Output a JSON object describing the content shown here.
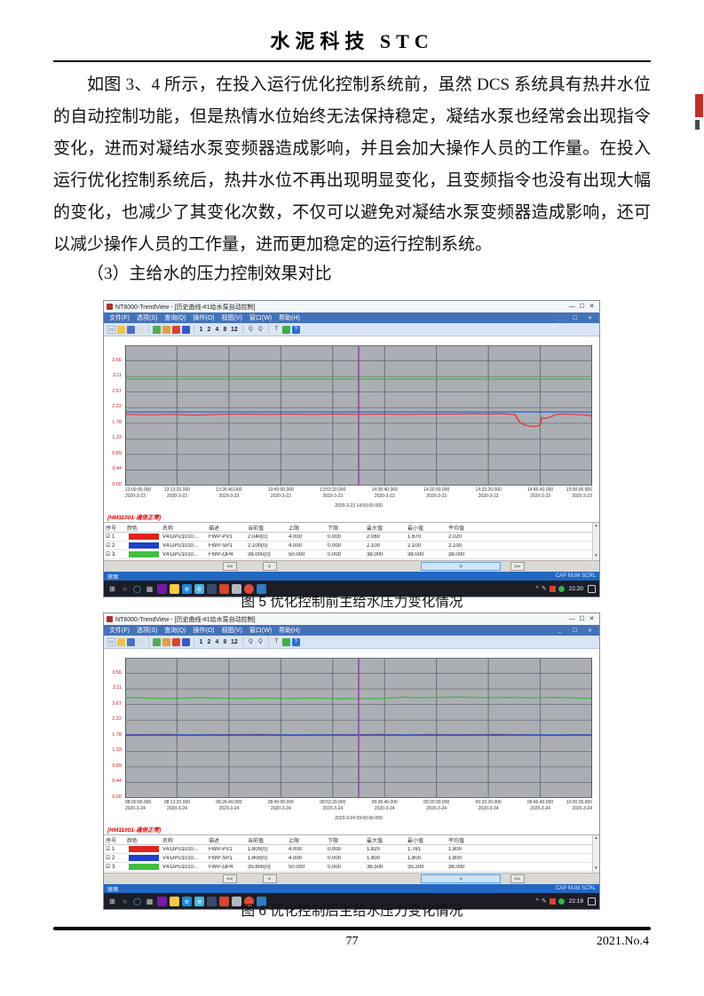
{
  "page": {
    "journal_title": "水泥科技 STC",
    "paragraph": "如图 3、4 所示，在投入运行优化控制系统前，虽然 DCS 系统具有热井水位的自动控制功能，但是热情水位始终无法保持稳定，凝结水泵也经常会出现指令变化，进而对凝结水泵变频器造成影响，并且会加大操作人员的工作量。在投入运行优化控制系统后，热井水位不再出现明显变化，且变频指令也没有出现大幅的变化，也减少了其变化次数，不仅可以避免对凝结水泵变频器造成影响，还可以减少操作人员的工作量，进而更加稳定的运行控制系统。",
    "subheading": "（3）主给水的压力控制效果对比",
    "fig5_caption": "图 5 优化控制前主给水压力变化情况",
    "fig6_caption": "图 6 优化控制后主给水压力变化情况",
    "page_number": "77",
    "issue_label": "2021.No.4"
  },
  "trendview": {
    "window_title": "NT6000-TrendView - [历史曲线-#1给水泵自动控制]",
    "window_controls": [
      "—",
      "☐",
      "✕"
    ],
    "mdi_controls": [
      "_",
      "☐",
      "✕"
    ],
    "menus": [
      "文件(F)",
      "选项(S)",
      "查询(Q)",
      "操作(O)",
      "视图(V)",
      "窗口(W)",
      "帮助(H)"
    ],
    "toolbar_items": [
      {
        "name": "new-icon",
        "glyph": "▤",
        "bg": "#fbfbfb",
        "fg": "#6a86ae",
        "border": true
      },
      {
        "name": "open-icon",
        "glyph": "",
        "bg": "#f2c24f"
      },
      {
        "name": "save-icon",
        "glyph": "",
        "bg": "#4a72c0"
      },
      {
        "name": "print-icon",
        "glyph": "",
        "bg": "#d7dde4"
      },
      {
        "name": "sep"
      },
      {
        "name": "export-icon",
        "glyph": "",
        "bg": "#58a858"
      },
      {
        "name": "copy-icon",
        "glyph": "",
        "bg": "#e0a23e"
      },
      {
        "name": "alarm-icon",
        "glyph": "",
        "bg": "#d84430"
      },
      {
        "name": "realtime-icon",
        "glyph": "",
        "bg": "#3a55c0"
      },
      {
        "name": "sep"
      },
      {
        "name": "interval-1-button",
        "text": "1"
      },
      {
        "name": "interval-2-button",
        "text": "2"
      },
      {
        "name": "interval-4-button",
        "text": "4"
      },
      {
        "name": "interval-8-button",
        "text": "8"
      },
      {
        "name": "interval-12-button",
        "text": "12"
      },
      {
        "name": "sep"
      },
      {
        "name": "zoom-in-icon",
        "glyph": "Q",
        "bg": "#dce6f4",
        "fg": "#333"
      },
      {
        "name": "zoom-out-icon",
        "glyph": "Q",
        "bg": "#dce6f4",
        "fg": "#333"
      },
      {
        "name": "sep"
      },
      {
        "name": "cursor-tool-icon",
        "glyph": "T",
        "bg": "#dce6f4",
        "fg": "#222"
      },
      {
        "name": "legend-icon",
        "glyph": "",
        "bg": "#3fae49"
      },
      {
        "name": "help-icon",
        "glyph": "?",
        "bg": "#2f6fd0",
        "fg": "#fff"
      }
    ],
    "y_axis_labels": [
      "3.56",
      "3.11",
      "2.67",
      "2.22",
      "1.78",
      "1.33",
      "0.89",
      "0.44",
      "0.00"
    ],
    "alarm_text": "[HM11001-通信正常]",
    "table_headers": [
      "序号",
      "颜色",
      "名称",
      "描述",
      "当前值",
      "上限",
      "下限",
      "最大值",
      "最小值",
      "平均值"
    ],
    "scroll_buttons": [
      "<<",
      "<",
      ">",
      ">>"
    ],
    "status_ready": "就绪",
    "status_locks": "CAP NUM SCRL",
    "taskbar_icons": [
      {
        "name": "start-button",
        "glyph": "⊞",
        "fg": "#dfe8f2"
      },
      {
        "name": "search-icon",
        "glyph": "○",
        "fg": "#c9ced4"
      },
      {
        "name": "cortana-icon",
        "glyph": "◯",
        "fg": "#56b6e8"
      },
      {
        "name": "task-view-icon",
        "glyph": "▦",
        "fg": "#c9ced4"
      },
      {
        "name": "onenote-icon",
        "bg": "#7719aa"
      },
      {
        "name": "explorer-icon",
        "bg": "#f7c749"
      },
      {
        "name": "edge-icon",
        "glyph": "e",
        "bg": "#1e88d2",
        "fg": "#fff"
      },
      {
        "name": "ie-icon",
        "glyph": "e",
        "bg": "#49b3e8",
        "fg": "#fff"
      },
      {
        "name": "app-icon-navy",
        "bg": "#3a4a6b"
      },
      {
        "name": "defender-icon",
        "bg": "#d6452f"
      },
      {
        "name": "media-icon",
        "bg": "#b4b9c0"
      },
      {
        "name": "chrome-icon",
        "bg": "#dd4b39",
        "round": true
      },
      {
        "name": "vscode-icon",
        "bg": "#2f7cc3"
      }
    ],
    "tray": {
      "chevron": "^",
      "pen_glyph": "✎",
      "notification_glyph": "▭"
    }
  },
  "chart_data": [
    {
      "type": "line",
      "title": "优化控制前主给水压力变化情况",
      "ylim": [
        0,
        4
      ],
      "grid": true,
      "tick_date": "2020-3-23",
      "x_times": [
        "13:00:00.000",
        "13:13:20.000",
        "13:26:40.000",
        "13:40:00.000",
        "13:53:20.000",
        "14:06:40.000",
        "14:20:00.000",
        "14:33:20.000",
        "14:46:40.000",
        "15:00:00.000"
      ],
      "cursor_label": "2020-3-23 14:00:00.000",
      "series": [
        {
          "name": "FWP-OP4",
          "color": "#3db53d",
          "width": 3,
          "points": [
            [
              0,
              3.04
            ],
            [
              1,
              3.04
            ]
          ]
        },
        {
          "name": "FWP-SP1",
          "color": "#2457c5",
          "width": 3,
          "points": [
            [
              0,
              2.1
            ],
            [
              1,
              2.1
            ]
          ]
        },
        {
          "name": "FWP-PV1",
          "color": "#e03438",
          "width": 3,
          "points": [
            [
              0,
              2.03
            ],
            [
              0.05,
              2.02
            ],
            [
              0.1,
              2.03
            ],
            [
              0.15,
              2.01
            ],
            [
              0.2,
              2.03
            ],
            [
              0.25,
              2.04
            ],
            [
              0.3,
              2.03
            ],
            [
              0.35,
              2.04
            ],
            [
              0.4,
              2.03
            ],
            [
              0.45,
              2.04
            ],
            [
              0.5,
              2.03
            ],
            [
              0.55,
              2.04
            ],
            [
              0.6,
              2.03
            ],
            [
              0.65,
              2.04
            ],
            [
              0.7,
              2.04
            ],
            [
              0.75,
              2.05
            ],
            [
              0.78,
              2.04
            ],
            [
              0.8,
              2.05
            ],
            [
              0.82,
              2.04
            ],
            [
              0.835,
              2.02
            ],
            [
              0.845,
              1.8
            ],
            [
              0.855,
              1.73
            ],
            [
              0.865,
              1.7
            ],
            [
              0.875,
              1.68
            ],
            [
              0.882,
              1.7
            ],
            [
              0.888,
              1.72
            ],
            [
              0.893,
              1.94
            ],
            [
              0.9,
              1.92
            ],
            [
              0.91,
              1.95
            ],
            [
              0.92,
              2.02
            ],
            [
              0.94,
              2.04
            ],
            [
              0.96,
              2.03
            ],
            [
              0.98,
              2.02
            ],
            [
              1,
              1.99
            ]
          ]
        }
      ],
      "table_rows": [
        {
          "num": "1",
          "checked": true,
          "swatch": "#e0241b",
          "cells": [
            "V4:DPU1010...",
            "FWP-PV1",
            "2.040(0)",
            "4.000",
            "0.000",
            "2.060",
            "1.670",
            "2.020"
          ]
        },
        {
          "num": "2",
          "checked": true,
          "swatch": "#1f41c8",
          "cells": [
            "V4:DPU1010...",
            "FWP-SP1",
            "2.100(0)",
            "4.000",
            "0.000",
            "2.100",
            "2.100",
            "2.100"
          ]
        },
        {
          "num": "3",
          "checked": true,
          "swatch": "#3fbf3f",
          "cells": [
            "V4:DPU1010...",
            "FWP-OP4",
            "38.000(0)",
            "50.000",
            "0.000",
            "38.000",
            "38.000",
            "38.000"
          ]
        }
      ],
      "clock": "22:20"
    },
    {
      "type": "line",
      "title": "优化控制后主给水压力变化情况",
      "ylim": [
        0,
        4
      ],
      "grid": true,
      "tick_date": "2020-3-24",
      "x_times": [
        "08:00:00.000",
        "08:13:20.000",
        "08:26:40.000",
        "08:40:00.000",
        "08:53:20.000",
        "09:06:40.000",
        "09:20:00.000",
        "09:33:20.000",
        "09:46:40.000",
        "10:00:00.000"
      ],
      "cursor_label": "2020-3-24 09:00:00.000",
      "series": [
        {
          "name": "FWP-OP4",
          "color": "#3db53d",
          "width": 3,
          "points": [
            [
              0,
              2.87
            ],
            [
              0.05,
              2.85
            ],
            [
              0.1,
              2.84
            ],
            [
              0.15,
              2.86
            ],
            [
              0.2,
              2.85
            ],
            [
              0.25,
              2.84
            ],
            [
              0.3,
              2.85
            ],
            [
              0.35,
              2.84
            ],
            [
              0.4,
              2.85
            ],
            [
              0.45,
              2.84
            ],
            [
              0.5,
              2.83
            ],
            [
              0.55,
              2.84
            ],
            [
              0.6,
              2.88
            ],
            [
              0.62,
              2.86
            ],
            [
              0.67,
              2.87
            ],
            [
              0.72,
              2.88
            ],
            [
              0.77,
              2.86
            ],
            [
              0.82,
              2.87
            ],
            [
              0.87,
              2.86
            ],
            [
              0.92,
              2.87
            ],
            [
              0.96,
              2.86
            ],
            [
              1,
              2.84
            ]
          ]
        },
        {
          "name": "FWP-PV1",
          "color": "#e03438",
          "width": 4,
          "points": [
            [
              0,
              1.8
            ],
            [
              0.1,
              1.81
            ],
            [
              0.12,
              1.79
            ],
            [
              0.2,
              1.8
            ],
            [
              0.3,
              1.81
            ],
            [
              0.35,
              1.79
            ],
            [
              0.45,
              1.8
            ],
            [
              0.55,
              1.81
            ],
            [
              0.6,
              1.79
            ],
            [
              0.65,
              1.81
            ],
            [
              0.7,
              1.8
            ],
            [
              0.8,
              1.81
            ],
            [
              0.9,
              1.79
            ],
            [
              1,
              1.8
            ]
          ]
        },
        {
          "name": "FWP-SP1",
          "color": "#2457c5",
          "width": 3,
          "points": [
            [
              0,
              1.8
            ],
            [
              1,
              1.8
            ]
          ]
        }
      ],
      "table_rows": [
        {
          "num": "1",
          "checked": true,
          "swatch": "#e0241b",
          "cells": [
            "V4:DPU1010...",
            "FWP-PV1",
            "1.800(0)",
            "4.000",
            "0.000",
            "1.820",
            "1.761",
            "1.800"
          ]
        },
        {
          "num": "2",
          "checked": true,
          "swatch": "#1f41c8",
          "cells": [
            "V4:DPU1010...",
            "FWP-SP1",
            "1.800(0)",
            "4.000",
            "0.000",
            "1.800",
            "1.800",
            "1.800"
          ]
        },
        {
          "num": "3",
          "checked": true,
          "swatch": "#3fbf3f",
          "cells": [
            "V4:DPU1010...",
            "FWP-OP4",
            "35.800(0)",
            "50.000",
            "0.000",
            "36.500",
            "35.200",
            "36.000"
          ]
        }
      ],
      "clock": "22:19"
    }
  ]
}
